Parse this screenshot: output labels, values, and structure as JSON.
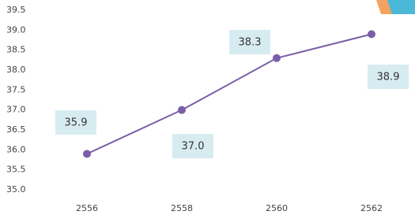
{
  "chart_data": {
    "type": "line",
    "categories": [
      "2556",
      "2558",
      "2560",
      "2562"
    ],
    "series": [
      {
        "color": "#7b5ea7",
        "values": [
          35.9,
          37.0,
          38.3,
          38.9
        ],
        "value_labels": [
          "35.9",
          "37.0",
          "38.3",
          "38.9"
        ]
      }
    ],
    "ylim": [
      35,
      39.5
    ],
    "yticks": [
      {
        "value": 35,
        "label": "35.0"
      },
      35.5,
      {
        "value": 36,
        "label": "36.0"
      },
      36.5,
      {
        "value": 37,
        "label": "37.0"
      },
      37.5,
      {
        "value": 38,
        "label": "38.0"
      },
      38.5,
      {
        "value": 39,
        "label": "39.0"
      },
      39.5
    ]
  }
}
